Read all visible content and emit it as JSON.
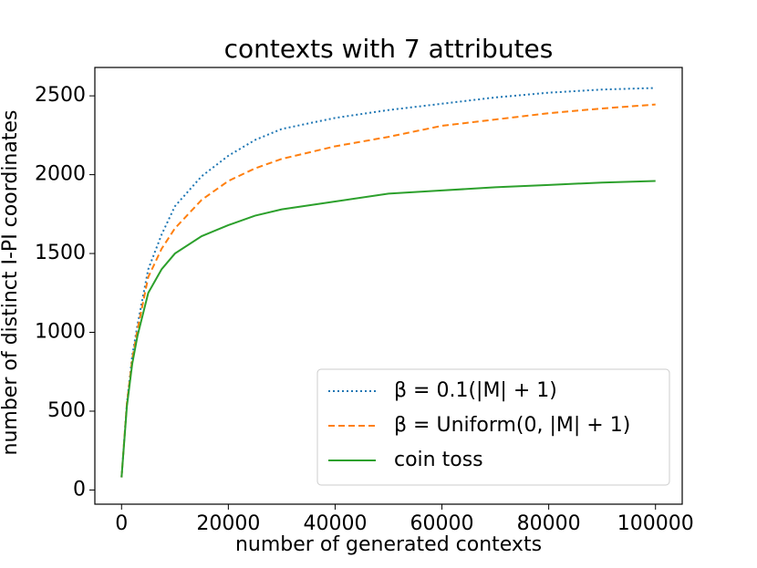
{
  "chart_data": {
    "type": "line",
    "title": "contexts with 7 attributes",
    "xlabel": "number of generated contexts",
    "ylabel": "number of distinct I-PI coordinates",
    "x": [
      0,
      1000,
      2000,
      3000,
      5000,
      7500,
      10000,
      15000,
      20000,
      25000,
      30000,
      40000,
      50000,
      60000,
      70000,
      80000,
      90000,
      100000
    ],
    "series": [
      {
        "name": "β = 0.1(|M| + 1)",
        "color": "#1f77b4",
        "linestyle": "dotted",
        "values": [
          80,
          550,
          850,
          1050,
          1400,
          1620,
          1800,
          1990,
          2120,
          2220,
          2290,
          2360,
          2410,
          2450,
          2490,
          2520,
          2540,
          2550
        ]
      },
      {
        "name": "β = Uniform(0, |M| + 1)",
        "color": "#ff7f0e",
        "linestyle": "dashed",
        "values": [
          80,
          550,
          830,
          1020,
          1350,
          1530,
          1660,
          1840,
          1960,
          2040,
          2100,
          2180,
          2240,
          2310,
          2350,
          2390,
          2420,
          2445
        ]
      },
      {
        "name": "coin toss",
        "color": "#2ca02c",
        "linestyle": "solid",
        "values": [
          80,
          530,
          800,
          980,
          1250,
          1400,
          1500,
          1610,
          1680,
          1740,
          1780,
          1830,
          1880,
          1900,
          1920,
          1935,
          1950,
          1960
        ]
      }
    ],
    "xlim": [
      -5000,
      105000
    ],
    "ylim": [
      -90,
      2680
    ],
    "xticks": [
      0,
      20000,
      40000,
      60000,
      80000,
      100000
    ],
    "yticks": [
      0,
      500,
      1000,
      1500,
      2000,
      2500
    ],
    "legend": "lower right"
  }
}
